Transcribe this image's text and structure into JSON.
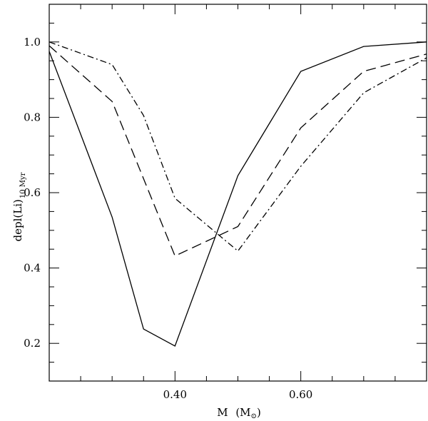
{
  "chart_data": {
    "type": "line",
    "xlabel": {
      "main": "M",
      "unit_open": "(M",
      "unit_sub": "⊙",
      "unit_close": ")"
    },
    "ylabel": {
      "main": "depl(Li)",
      "sub": "10 Myr"
    },
    "xlim": [
      0.2,
      0.8
    ],
    "ylim": [
      0.1,
      1.1
    ],
    "x_ticks_major": [
      0.4,
      0.6
    ],
    "x_tick_labels": [
      "0.40",
      "0.60"
    ],
    "x_ticks_minor_step": 0.05,
    "y_ticks_major": [
      0.2,
      0.4,
      0.6,
      0.8,
      1.0
    ],
    "y_tick_labels": [
      "0.2",
      "0.4",
      "0.6",
      "0.8",
      "1.0"
    ],
    "y_ticks_minor_step": 0.05,
    "legend": "none",
    "grid": false,
    "series": [
      {
        "style": "solid",
        "x": [
          0.2,
          0.3,
          0.35,
          0.4,
          0.5,
          0.6,
          0.7,
          0.8
        ],
        "y": [
          0.975,
          0.535,
          0.238,
          0.193,
          0.645,
          0.922,
          0.988,
          1.0
        ]
      },
      {
        "style": "dashed",
        "x": [
          0.2,
          0.3,
          0.4,
          0.5,
          0.6,
          0.7,
          0.8
        ],
        "y": [
          0.99,
          0.842,
          0.432,
          0.51,
          0.772,
          0.922,
          0.968
        ]
      },
      {
        "style": "dashdot",
        "x": [
          0.2,
          0.3,
          0.35,
          0.4,
          0.5,
          0.6,
          0.7,
          0.8
        ],
        "y": [
          1.0,
          0.94,
          0.805,
          0.585,
          0.445,
          0.67,
          0.865,
          0.958
        ]
      }
    ]
  }
}
